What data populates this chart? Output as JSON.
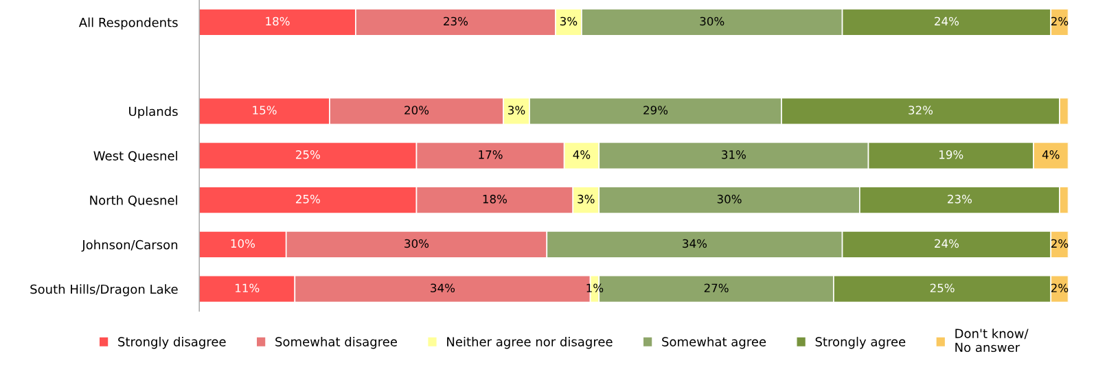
{
  "chart_data": {
    "type": "bar",
    "orientation": "horizontal",
    "stacked": true,
    "categories": [
      "All Respondents",
      null,
      "Uplands",
      "West Quesnel",
      "North Quesnel",
      "Johnson/Carson",
      "South Hills/Dragon Lake"
    ],
    "series": [
      {
        "name": "Strongly disagree",
        "color": "#ff5050",
        "values": [
          18,
          null,
          15,
          25,
          25,
          10,
          11
        ],
        "value_labels": [
          "18%",
          null,
          "15%",
          "25%",
          "25%",
          "10%",
          "11%"
        ]
      },
      {
        "name": "Somewhat disagree",
        "color": "#e87878",
        "values": [
          23,
          null,
          20,
          17,
          18,
          30,
          34
        ],
        "value_labels": [
          "23%",
          null,
          "20%",
          "17%",
          "18%",
          "30%",
          "34%"
        ]
      },
      {
        "name": "Neither agree nor disagree",
        "color": "#ffff99",
        "values": [
          3,
          null,
          3,
          4,
          3,
          null,
          1
        ],
        "value_labels": [
          "3%",
          null,
          "3%",
          "4%",
          "3%",
          null,
          "1%"
        ]
      },
      {
        "name": "Somewhat agree",
        "color": "#8ea66a",
        "values": [
          30,
          null,
          29,
          31,
          30,
          34,
          27
        ],
        "value_labels": [
          "30%",
          null,
          "29%",
          "31%",
          "30%",
          "34%",
          "27%"
        ]
      },
      {
        "name": "Strongly agree",
        "color": "#77933c",
        "values": [
          24,
          null,
          32,
          19,
          23,
          24,
          25
        ],
        "value_labels": [
          "24%",
          null,
          "32%",
          "19%",
          "23%",
          "24%",
          "25%"
        ]
      },
      {
        "name": "Don't know/\nNo answer",
        "color": "#fac860",
        "values": [
          2,
          null,
          1,
          4,
          1,
          2,
          2
        ],
        "value_labels": [
          "2%",
          null,
          null,
          "4%",
          null,
          "2%",
          "2%"
        ]
      }
    ],
    "legend": "bottom",
    "grid": false
  }
}
